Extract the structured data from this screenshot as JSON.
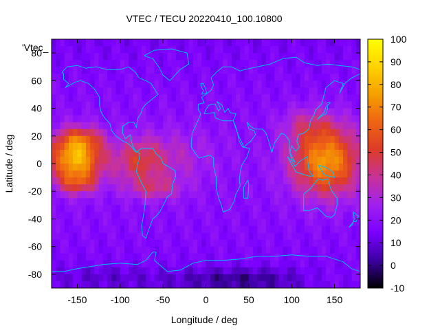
{
  "chart_data": {
    "type": "heatmap",
    "title": "VTEC / TECU 20220410_100.10800",
    "key_title": "'Vtec_",
    "xlabel": "Longitude / deg",
    "ylabel": "Latitude / deg",
    "xlim": [
      -180,
      180
    ],
    "ylim": [
      -90,
      90
    ],
    "zlim": [
      -10,
      100
    ],
    "x_ticks": [
      "-150",
      "-100",
      "-50",
      "0",
      "50",
      "100",
      "150"
    ],
    "x_tick_values": [
      -150,
      -100,
      -50,
      0,
      50,
      100,
      150
    ],
    "y_ticks": [
      "80",
      "60",
      "40",
      "20",
      "0",
      "-20",
      "-40",
      "-60",
      "-80"
    ],
    "y_tick_values": [
      80,
      60,
      40,
      20,
      0,
      -20,
      -40,
      -60,
      -80
    ],
    "colorbar_ticks": [
      "100",
      "90",
      "80",
      "70",
      "60",
      "50",
      "40",
      "30",
      "20",
      "10",
      "0",
      "-10"
    ],
    "colorbar_tick_values": [
      100,
      90,
      80,
      70,
      60,
      50,
      40,
      30,
      20,
      10,
      0,
      -10
    ],
    "colormap_stops": [
      "#000000",
      "#3b00a0",
      "#7a00ff",
      "#a020f0",
      "#c8329a",
      "#dc3c28",
      "#f06414",
      "#f5a000",
      "#ffd200",
      "#ffff00"
    ],
    "coastline_color": "#00bfff",
    "grid": false,
    "legend": "none",
    "features": [
      {
        "name": "pacific-east-anomaly",
        "lon": -150,
        "lat": 2,
        "peak": 85
      },
      {
        "name": "south-america-crest",
        "lon": -75,
        "lat": 2,
        "peak": 52
      },
      {
        "name": "asia-pacific-anomaly",
        "lon": 140,
        "lat": 0,
        "peak": 80
      },
      {
        "name": "antarctic-low",
        "lon": 40,
        "lat": -82,
        "peak": 0
      }
    ]
  }
}
